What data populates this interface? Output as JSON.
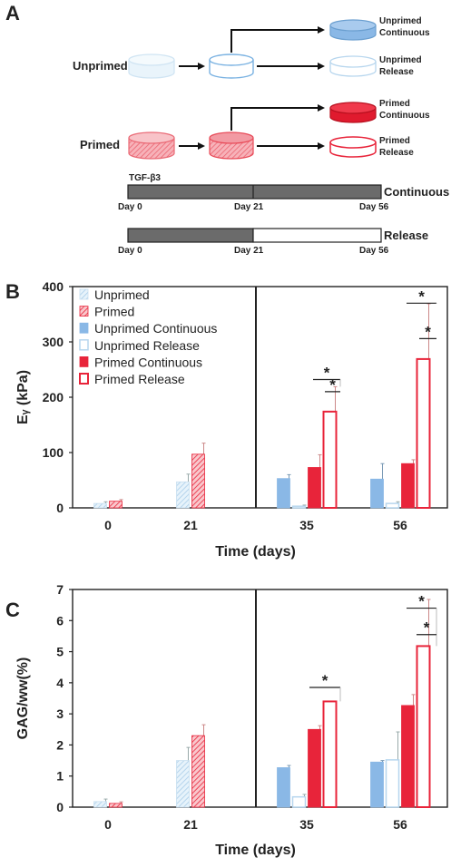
{
  "figure": {
    "panel_a": {
      "letter": "A",
      "unprimed_label": "Unprimed",
      "primed_label": "Primed",
      "outcomes": {
        "unprimed_continuous": [
          "Unprimed",
          "Continuous"
        ],
        "unprimed_release": [
          "Unprimed",
          "Release"
        ],
        "primed_continuous": [
          "Primed",
          "Continuous"
        ],
        "primed_release": [
          "Primed",
          "Release"
        ]
      },
      "timeline": {
        "factor": "TGF-β3",
        "continuous_label": "Continuous",
        "release_label": "Release",
        "day_labels": [
          "Day 0",
          "Day 21",
          "Day 56"
        ]
      },
      "colors": {
        "unprimed_light": "#d9ecf7",
        "unprimed_blue": "#8ab8e6",
        "primed_red": "#e8243a",
        "primed_pink": "#f2a0a8",
        "bar_gray": "#6b6b6b"
      }
    }
  },
  "chart_data": [
    {
      "panel": "B",
      "type": "bar",
      "xlabel": "Time (days)",
      "ylabel": "Eᵧ (kPa)",
      "ylim": [
        0,
        400
      ],
      "yticks": [
        0,
        100,
        200,
        300,
        400
      ],
      "categories": [
        "0",
        "21",
        "35",
        "56"
      ],
      "series": [
        {
          "name": "Unprimed",
          "style": "hatched-light-blue",
          "values": [
            8,
            47,
            null,
            null
          ],
          "errors": [
            3,
            14,
            null,
            null
          ]
        },
        {
          "name": "Primed",
          "style": "hatched-red",
          "values": [
            12,
            97,
            null,
            null
          ],
          "errors": [
            3,
            20,
            null,
            null
          ]
        },
        {
          "name": "Unprimed Continuous",
          "style": "solid-light-blue",
          "values": [
            null,
            null,
            53,
            52
          ],
          "errors": [
            null,
            null,
            7,
            28
          ]
        },
        {
          "name": "Unprimed Release",
          "style": "open-light-blue",
          "values": [
            null,
            null,
            3,
            8
          ],
          "errors": [
            null,
            null,
            2,
            3
          ]
        },
        {
          "name": "Primed Continuous",
          "style": "solid-red",
          "values": [
            null,
            null,
            73,
            80
          ],
          "errors": [
            null,
            null,
            23,
            7
          ]
        },
        {
          "name": "Primed Release",
          "style": "open-red",
          "values": [
            null,
            null,
            174,
            269
          ],
          "errors": [
            null,
            null,
            45,
            100
          ]
        }
      ],
      "significance": [
        "*",
        "*",
        "*",
        "*"
      ],
      "legend_position": "top-left"
    },
    {
      "panel": "C",
      "type": "bar",
      "xlabel": "Time (days)",
      "ylabel": "GAG/ww(%)",
      "ylim": [
        0,
        7
      ],
      "yticks": [
        0,
        1,
        2,
        3,
        4,
        5,
        6,
        7
      ],
      "categories": [
        "0",
        "21",
        "35",
        "56"
      ],
      "series": [
        {
          "name": "Unprimed",
          "style": "hatched-light-blue",
          "values": [
            0.18,
            1.5,
            null,
            null
          ],
          "errors": [
            0.08,
            0.42,
            null,
            null
          ]
        },
        {
          "name": "Primed",
          "style": "hatched-red",
          "values": [
            0.12,
            2.3,
            null,
            null
          ],
          "errors": [
            0.05,
            0.35,
            null,
            null
          ]
        },
        {
          "name": "Unprimed Continuous",
          "style": "solid-light-blue",
          "values": [
            null,
            null,
            1.27,
            1.45
          ],
          "errors": [
            null,
            null,
            0.07,
            0.05
          ]
        },
        {
          "name": "Unprimed Release",
          "style": "open-light-blue",
          "values": [
            null,
            null,
            0.33,
            1.52
          ],
          "errors": [
            null,
            null,
            0.08,
            0.9
          ]
        },
        {
          "name": "Primed Continuous",
          "style": "solid-red",
          "values": [
            null,
            null,
            2.5,
            3.27
          ],
          "errors": [
            null,
            null,
            0.12,
            0.35
          ]
        },
        {
          "name": "Primed Release",
          "style": "open-red",
          "values": [
            null,
            null,
            3.4,
            5.18
          ],
          "errors": [
            null,
            null,
            0.0,
            1.5
          ]
        }
      ],
      "significance": [
        "*",
        "*",
        "*"
      ]
    }
  ]
}
